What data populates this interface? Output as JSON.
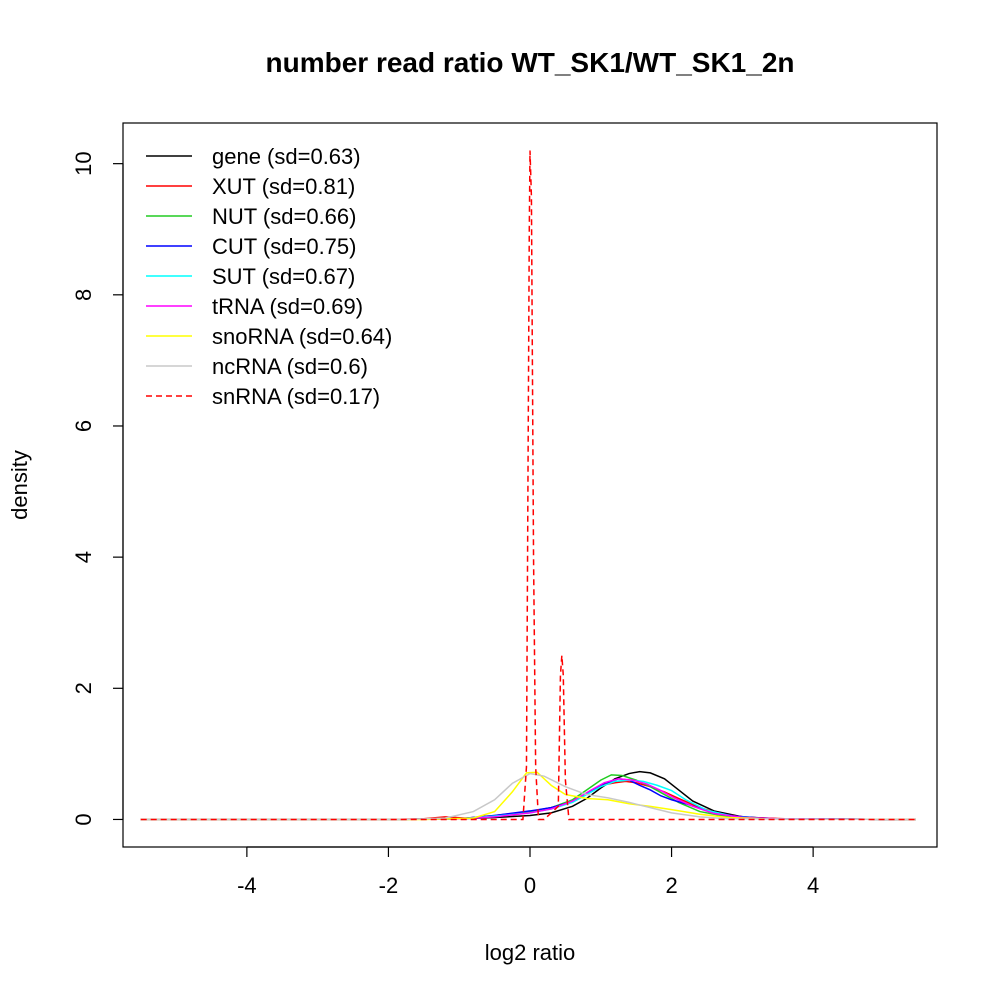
{
  "chart_data": {
    "type": "line",
    "title": "number read ratio WT_SK1/WT_SK1_2n",
    "xlabel": "log2 ratio",
    "ylabel": "density",
    "xlim": [
      -5.75,
      5.75
    ],
    "ylim": [
      -0.42,
      10.62
    ],
    "xticks": [
      -4,
      -2,
      0,
      2,
      4
    ],
    "yticks": [
      0,
      2,
      4,
      6,
      8,
      10
    ],
    "xtick_labels": [
      "-4",
      "-2",
      "0",
      "2",
      "4"
    ],
    "ytick_labels": [
      "0",
      "2",
      "4",
      "6",
      "8",
      "10"
    ],
    "grid": false,
    "legend_position": "top-left",
    "series": [
      {
        "name": "gene (sd=0.63)",
        "color": "#000000",
        "dash": "solid",
        "x": [
          -5.5,
          -2.0,
          -1.0,
          -0.5,
          0.0,
          0.3,
          0.6,
          0.8,
          1.0,
          1.2,
          1.4,
          1.55,
          1.7,
          1.9,
          2.1,
          2.3,
          2.6,
          3.0,
          3.5,
          5.45
        ],
        "y": [
          0.0,
          0.0,
          0.01,
          0.03,
          0.06,
          0.1,
          0.2,
          0.32,
          0.48,
          0.62,
          0.7,
          0.73,
          0.71,
          0.62,
          0.45,
          0.28,
          0.13,
          0.04,
          0.01,
          0.0
        ]
      },
      {
        "name": "XUT (sd=0.81)",
        "color": "#ff0000",
        "dash": "solid",
        "x": [
          -5.5,
          -2.0,
          -1.5,
          -1.2,
          -0.9,
          -0.5,
          0.0,
          0.3,
          0.6,
          0.8,
          1.0,
          1.2,
          1.35,
          1.5,
          1.7,
          1.9,
          2.1,
          2.4,
          2.7,
          3.1,
          3.6,
          5.45
        ],
        "y": [
          0.0,
          0.0,
          0.01,
          0.04,
          0.02,
          0.06,
          0.12,
          0.18,
          0.28,
          0.4,
          0.52,
          0.56,
          0.58,
          0.56,
          0.5,
          0.42,
          0.32,
          0.18,
          0.08,
          0.03,
          0.01,
          0.0
        ]
      },
      {
        "name": "NUT (sd=0.66)",
        "color": "#22cc22",
        "dash": "solid",
        "x": [
          -5.5,
          -2.0,
          -1.0,
          -0.5,
          0.0,
          0.3,
          0.6,
          0.8,
          1.0,
          1.15,
          1.3,
          1.5,
          1.7,
          1.9,
          2.1,
          2.4,
          2.8,
          3.3,
          5.45
        ],
        "y": [
          0.0,
          0.0,
          0.01,
          0.05,
          0.12,
          0.18,
          0.3,
          0.45,
          0.6,
          0.68,
          0.67,
          0.6,
          0.5,
          0.38,
          0.26,
          0.12,
          0.04,
          0.01,
          0.0
        ]
      },
      {
        "name": "CUT (sd=0.75)",
        "color": "#0000ff",
        "dash": "solid",
        "x": [
          -5.5,
          -2.0,
          -1.0,
          -0.5,
          0.0,
          0.3,
          0.6,
          0.85,
          1.05,
          1.25,
          1.4,
          1.55,
          1.7,
          1.85,
          2.0,
          2.2,
          2.5,
          2.9,
          3.4,
          5.45
        ],
        "y": [
          0.0,
          0.0,
          0.01,
          0.06,
          0.13,
          0.18,
          0.27,
          0.42,
          0.55,
          0.62,
          0.6,
          0.52,
          0.45,
          0.36,
          0.3,
          0.24,
          0.13,
          0.05,
          0.01,
          0.0
        ]
      },
      {
        "name": "SUT (sd=0.67)",
        "color": "#00ffff",
        "dash": "solid",
        "x": [
          -5.5,
          -2.0,
          -1.0,
          -0.5,
          0.0,
          0.3,
          0.6,
          0.8,
          1.0,
          1.2,
          1.4,
          1.6,
          1.8,
          2.0,
          2.2,
          2.5,
          2.9,
          3.4,
          5.45
        ],
        "y": [
          0.0,
          0.0,
          0.01,
          0.05,
          0.1,
          0.16,
          0.26,
          0.38,
          0.5,
          0.58,
          0.6,
          0.58,
          0.52,
          0.44,
          0.3,
          0.14,
          0.04,
          0.01,
          0.0
        ]
      },
      {
        "name": "tRNA (sd=0.69)",
        "color": "#ff00ff",
        "dash": "solid",
        "x": [
          -5.5,
          -2.0,
          -1.0,
          -0.5,
          0.0,
          0.3,
          0.6,
          0.85,
          1.05,
          1.25,
          1.45,
          1.65,
          1.85,
          2.05,
          2.3,
          2.6,
          3.0,
          3.5,
          5.45
        ],
        "y": [
          0.0,
          0.0,
          0.01,
          0.04,
          0.1,
          0.16,
          0.28,
          0.44,
          0.56,
          0.62,
          0.6,
          0.54,
          0.44,
          0.32,
          0.2,
          0.09,
          0.03,
          0.01,
          0.0
        ]
      },
      {
        "name": "snoRNA (sd=0.64)",
        "color": "#ffff00",
        "dash": "solid",
        "x": [
          -5.5,
          -1.5,
          -0.8,
          -0.5,
          -0.25,
          -0.05,
          0.1,
          0.3,
          0.5,
          0.8,
          1.1,
          1.4,
          1.7,
          2.0,
          2.4,
          2.8,
          3.3,
          5.45
        ],
        "y": [
          0.0,
          0.0,
          0.02,
          0.12,
          0.42,
          0.71,
          0.72,
          0.52,
          0.38,
          0.32,
          0.3,
          0.24,
          0.2,
          0.15,
          0.08,
          0.03,
          0.01,
          0.0
        ]
      },
      {
        "name": "ncRNA (sd=0.6)",
        "color": "#c8c8c8",
        "dash": "solid",
        "x": [
          -5.5,
          -1.8,
          -1.2,
          -0.8,
          -0.5,
          -0.25,
          0.0,
          0.2,
          0.5,
          0.8,
          1.1,
          1.4,
          1.7,
          2.0,
          2.4,
          2.8,
          5.45
        ],
        "y": [
          0.0,
          0.0,
          0.02,
          0.12,
          0.3,
          0.55,
          0.7,
          0.66,
          0.5,
          0.38,
          0.33,
          0.26,
          0.18,
          0.1,
          0.04,
          0.01,
          0.0
        ]
      },
      {
        "name": "snRNA (sd=0.17)",
        "color": "#ff0000",
        "dash": "dashed",
        "x": [
          -5.5,
          -0.1,
          -0.05,
          -0.01,
          0.0,
          0.02,
          0.05,
          0.08,
          0.12,
          0.2,
          0.4,
          0.43,
          0.45,
          0.47,
          0.5,
          0.55,
          5.45
        ],
        "y": [
          0.0,
          0.0,
          0.8,
          9.0,
          10.2,
          9.5,
          4.0,
          0.8,
          0.0,
          0.0,
          0.2,
          2.2,
          2.5,
          2.2,
          0.6,
          0.0,
          0.0
        ]
      }
    ]
  }
}
